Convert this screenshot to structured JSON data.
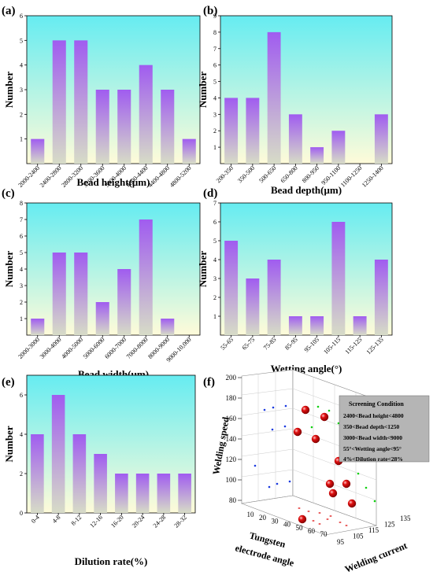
{
  "panels": [
    {
      "letter": "(a)"
    },
    {
      "letter": "(b)"
    },
    {
      "letter": "(c)"
    },
    {
      "letter": "(d)"
    },
    {
      "letter": "(e)"
    },
    {
      "letter": "(f)"
    }
  ],
  "colors": {
    "bar_top": "#a05cf0",
    "bar_bottom": "#d7dcc7",
    "bg_top": "#66ecf1",
    "bg_bottom": "#fffbd9",
    "sphere": "#e01010",
    "dot_blue": "#1a3ae0",
    "dot_green": "#10d010",
    "dot_red": "#e02020",
    "legend_bg": "#b5b5b5"
  },
  "chart_data": [
    {
      "type": "bar",
      "panel": "(a)",
      "xlabel": "Bead height(μm)",
      "ylabel": "Number",
      "ylim": [
        0,
        6
      ],
      "yticks": [
        1,
        2,
        3,
        4,
        5,
        6
      ],
      "categories": [
        "2000-2400",
        "2400-2800",
        "2800-3200",
        "3200-3600",
        "3600-4000",
        "4000-4400",
        "4400-4800",
        "4800-5200"
      ],
      "values": [
        1,
        5,
        5,
        3,
        3,
        4,
        3,
        1
      ]
    },
    {
      "type": "bar",
      "panel": "(b)",
      "xlabel": "Bead depth(μm)",
      "ylabel": "Number",
      "ylim": [
        0,
        9
      ],
      "yticks": [
        1,
        2,
        3,
        4,
        5,
        6,
        7,
        8,
        9
      ],
      "categories": [
        "200-350",
        "350-500",
        "500-650",
        "650-800",
        "800-950",
        "950-1100",
        "1100-1250",
        "1250-1400"
      ],
      "values": [
        4,
        4,
        8,
        3,
        1,
        2,
        0,
        3
      ]
    },
    {
      "type": "bar",
      "panel": "(c)",
      "xlabel": "Bead width(μm)",
      "ylabel": "Number",
      "ylim": [
        0,
        8
      ],
      "yticks": [
        1,
        2,
        3,
        4,
        5,
        6,
        7,
        8
      ],
      "categories": [
        "2000-3000",
        "3000-4000",
        "4000-5000",
        "5000-6000",
        "6000-7000",
        "7000-8000",
        "8000-9000",
        "9000-10,000"
      ],
      "values": [
        1,
        5,
        5,
        2,
        4,
        7,
        1,
        0
      ]
    },
    {
      "type": "bar",
      "panel": "(d)",
      "xlabel": "Wetting angle(°)",
      "ylabel": "Number",
      "ylim": [
        0,
        7
      ],
      "yticks": [
        1,
        2,
        3,
        4,
        5,
        6,
        7
      ],
      "categories": [
        "55-65",
        "65-75",
        "75-85",
        "85-95",
        "95-105",
        "105-115",
        "115-125",
        "125-135"
      ],
      "values": [
        5,
        3,
        4,
        1,
        1,
        6,
        1,
        4
      ]
    },
    {
      "type": "bar",
      "panel": "(e)",
      "xlabel": "Dilution rate(%)",
      "ylabel": "Number",
      "ylim": [
        0,
        7
      ],
      "yticks": [
        0,
        2,
        4,
        6
      ],
      "categories": [
        "0-4",
        "4-8",
        "8-12",
        "12-16",
        "16-20",
        "20-24",
        "24-28",
        "28-32"
      ],
      "values": [
        4,
        6,
        4,
        3,
        2,
        2,
        2,
        2
      ]
    },
    {
      "type": "scatter3d",
      "panel": "(f)",
      "axes": {
        "x": {
          "label": "Tungsten electrode angle",
          "ticks": [
            10,
            20,
            30,
            40,
            50,
            60,
            70
          ]
        },
        "y": {
          "label": "Welding current",
          "ticks": [
            95,
            105,
            115,
            125,
            135
          ]
        },
        "z": {
          "label": "Welding speed",
          "ticks": [
            80,
            100,
            120,
            140,
            160,
            180,
            200
          ]
        }
      },
      "legend": {
        "title": "Screening Condition",
        "items": [
          "2400<Bead height<4800",
          "350<Bead depth<1250",
          "3000<Bead width<9000",
          "55°<Wetting angle<95°",
          "4%<Dilution rate<28%"
        ]
      }
    }
  ]
}
